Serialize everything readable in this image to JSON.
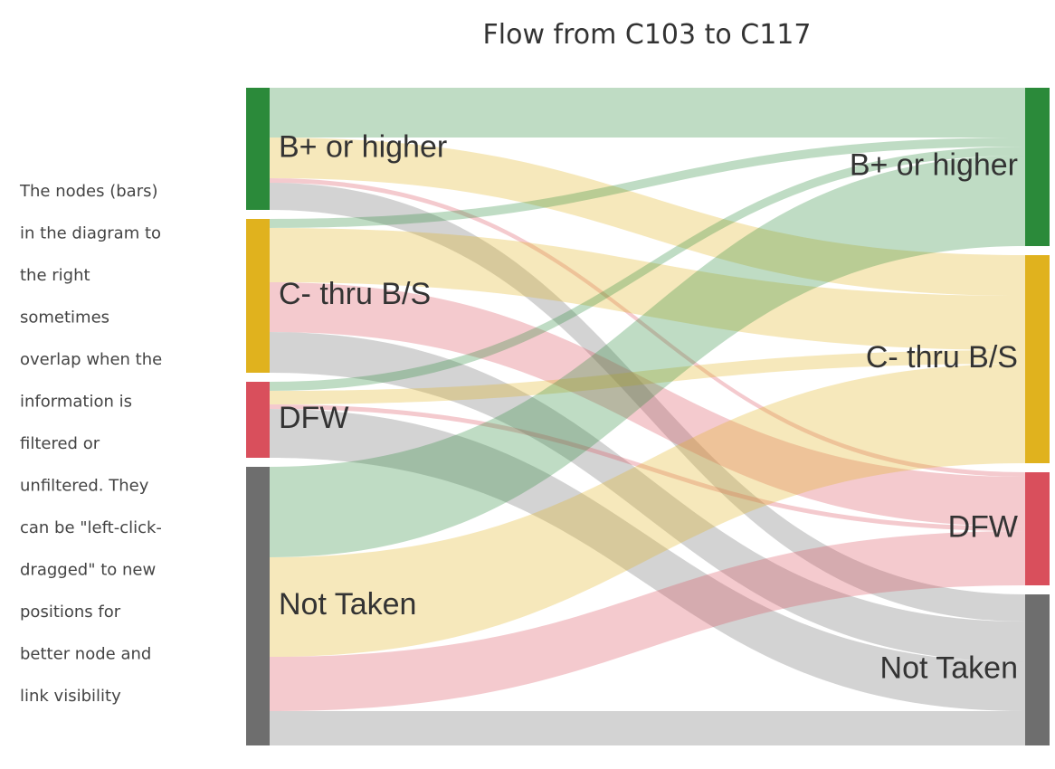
{
  "chart_data": {
    "type": "sankey",
    "title": "Flow from C103 to C117",
    "note": [
      "The nodes (bars)",
      "in the diagram to",
      "the right",
      "sometimes",
      "overlap when the",
      "information is",
      "filtered or",
      "unfiltered. They",
      "can be \"left-click-",
      "dragged\" to new",
      "positions for",
      "better node and",
      "link visibility"
    ],
    "sources": [
      {
        "name": "B+ or higher",
        "color": "#2b8a3a"
      },
      {
        "name": "C- thru B/S",
        "color": "#e0b21e"
      },
      {
        "name": "DFW",
        "color": "#d94f5c"
      },
      {
        "name": "Not Taken",
        "color": "#6e6e6e"
      }
    ],
    "targets": [
      {
        "name": "B+ or higher",
        "color": "#2b8a3a"
      },
      {
        "name": "C- thru B/S",
        "color": "#e0b21e"
      },
      {
        "name": "DFW",
        "color": "#d94f5c"
      },
      {
        "name": "Not Taken",
        "color": "#6e6e6e"
      }
    ],
    "links": [
      {
        "source": 0,
        "target": 0,
        "value": 55
      },
      {
        "source": 0,
        "target": 1,
        "value": 45
      },
      {
        "source": 0,
        "target": 2,
        "value": 5
      },
      {
        "source": 0,
        "target": 3,
        "value": 30
      },
      {
        "source": 1,
        "target": 0,
        "value": 10
      },
      {
        "source": 1,
        "target": 1,
        "value": 60
      },
      {
        "source": 1,
        "target": 2,
        "value": 55
      },
      {
        "source": 1,
        "target": 3,
        "value": 45
      },
      {
        "source": 2,
        "target": 0,
        "value": 10
      },
      {
        "source": 2,
        "target": 1,
        "value": 15
      },
      {
        "source": 2,
        "target": 2,
        "value": 5
      },
      {
        "source": 2,
        "target": 3,
        "value": 54
      },
      {
        "source": 3,
        "target": 0,
        "value": 100
      },
      {
        "source": 3,
        "target": 1,
        "value": 110
      },
      {
        "source": 3,
        "target": 2,
        "value": 60
      },
      {
        "source": 3,
        "target": 3,
        "value": 38
      }
    ]
  }
}
